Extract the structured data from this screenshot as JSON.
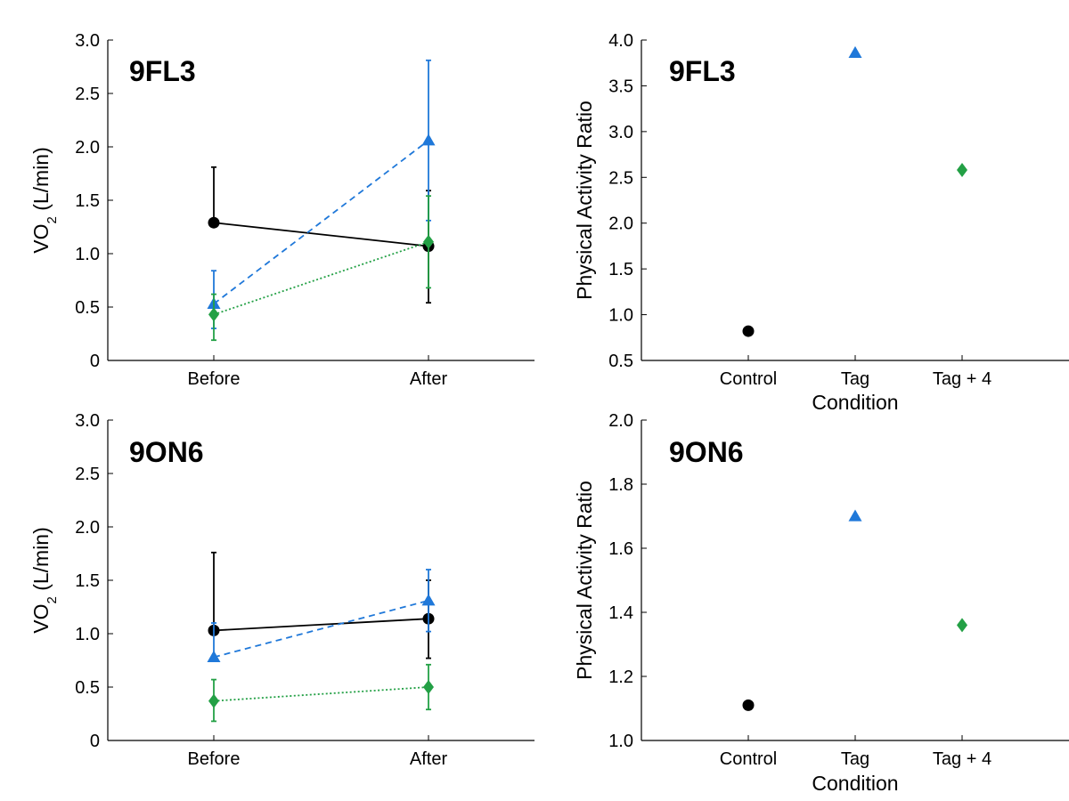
{
  "colors": {
    "control": "#000000",
    "tag": "#1f78d9",
    "tag4": "#23a045"
  },
  "chart_data": [
    {
      "type": "line",
      "title": "9FL3",
      "xlabel": "",
      "ylabel_main": "VO",
      "ylabel_sub": "2",
      "ylabel_rest": " (L/min)",
      "categories": [
        "Before",
        "After"
      ],
      "ylim": [
        0,
        3.0
      ],
      "yticks": [
        0,
        0.5,
        1.0,
        1.5,
        2.0,
        2.5,
        3.0
      ],
      "ytick_labels": [
        "0",
        "0.5",
        "1.0",
        "1.5",
        "2.0",
        "2.5",
        "3.0"
      ],
      "grid": false,
      "series": [
        {
          "values": [
            1.29,
            1.07
          ],
          "err_low": [
            1.29,
            0.54
          ],
          "err_high": [
            1.81,
            1.59
          ],
          "color": "#000000",
          "marker": "circle",
          "line_style": "solid"
        },
        {
          "values": [
            0.53,
            2.06
          ],
          "err_low": [
            0.3,
            1.31
          ],
          "err_high": [
            0.84,
            2.81
          ],
          "color": "#1f78d9",
          "marker": "triangle",
          "line_style": "dashed"
        },
        {
          "values": [
            0.43,
            1.11
          ],
          "err_low": [
            0.19,
            0.68
          ],
          "err_high": [
            0.62,
            1.54
          ],
          "color": "#23a045",
          "marker": "diamond",
          "line_style": "dotted"
        }
      ]
    },
    {
      "type": "scatter",
      "title": "9FL3",
      "xlabel": "Condition",
      "ylabel": "Physical Activity Ratio",
      "categories": [
        "Control",
        "Tag",
        "Tag + 4"
      ],
      "ylim": [
        0.5,
        4.0
      ],
      "yticks": [
        0.5,
        1.0,
        1.5,
        2.0,
        2.5,
        3.0,
        3.5,
        4.0
      ],
      "ytick_labels": [
        "0.5",
        "1.0",
        "1.5",
        "2.0",
        "2.5",
        "3.0",
        "3.5",
        "4.0"
      ],
      "grid": false,
      "points": [
        {
          "category": "Control",
          "value": 0.82,
          "color": "#000000",
          "marker": "circle"
        },
        {
          "category": "Tag",
          "value": 3.86,
          "color": "#1f78d9",
          "marker": "triangle"
        },
        {
          "category": "Tag + 4",
          "value": 2.58,
          "color": "#23a045",
          "marker": "diamond"
        }
      ]
    },
    {
      "type": "line",
      "title": "9ON6",
      "xlabel": "",
      "ylabel_main": "VO",
      "ylabel_sub": "2",
      "ylabel_rest": " (L/min)",
      "categories": [
        "Before",
        "After"
      ],
      "ylim": [
        0,
        3.0
      ],
      "yticks": [
        0,
        0.5,
        1.0,
        1.5,
        2.0,
        2.5,
        3.0
      ],
      "ytick_labels": [
        "0",
        "0.5",
        "1.0",
        "1.5",
        "2.0",
        "2.5",
        "3.0"
      ],
      "grid": false,
      "series": [
        {
          "values": [
            1.03,
            1.14
          ],
          "err_low": [
            1.03,
            0.77
          ],
          "err_high": [
            1.76,
            1.5
          ],
          "color": "#000000",
          "marker": "circle",
          "line_style": "solid"
        },
        {
          "values": [
            0.78,
            1.31
          ],
          "err_low": [
            0.78,
            1.02
          ],
          "err_high": [
            1.1,
            1.6
          ],
          "color": "#1f78d9",
          "marker": "triangle",
          "line_style": "dashed"
        },
        {
          "values": [
            0.37,
            0.5
          ],
          "err_low": [
            0.18,
            0.29
          ],
          "err_high": [
            0.57,
            0.71
          ],
          "color": "#23a045",
          "marker": "diamond",
          "line_style": "dotted"
        }
      ]
    },
    {
      "type": "scatter",
      "title": "9ON6",
      "xlabel": "Condition",
      "ylabel": "Physical Activity Ratio",
      "categories": [
        "Control",
        "Tag",
        "Tag + 4"
      ],
      "ylim": [
        1.0,
        2.0
      ],
      "yticks": [
        1.0,
        1.2,
        1.4,
        1.6,
        1.8,
        2.0
      ],
      "ytick_labels": [
        "1.0",
        "1.2",
        "1.4",
        "1.6",
        "1.8",
        "2.0"
      ],
      "grid": false,
      "points": [
        {
          "category": "Control",
          "value": 1.11,
          "color": "#000000",
          "marker": "circle"
        },
        {
          "category": "Tag",
          "value": 1.7,
          "color": "#1f78d9",
          "marker": "triangle"
        },
        {
          "category": "Tag + 4",
          "value": 1.36,
          "color": "#23a045",
          "marker": "diamond"
        }
      ]
    }
  ]
}
